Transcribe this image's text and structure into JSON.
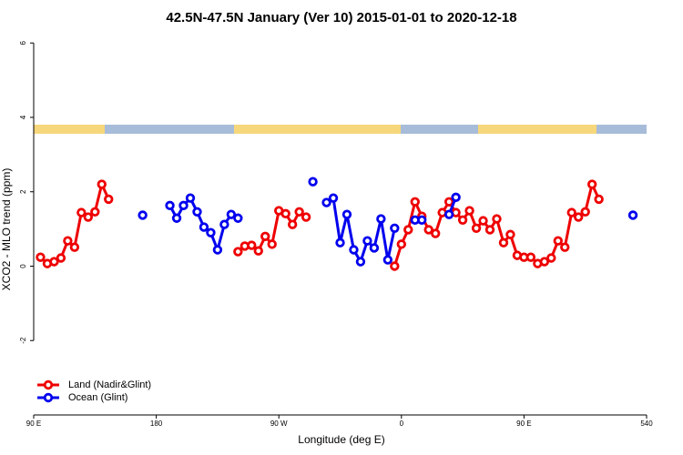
{
  "chart_data": {
    "type": "line",
    "title": "42.5N-47.5N January (Ver 10)   2015-01-01 to 2020-12-18",
    "xlabel": "Longitude (deg E)",
    "ylabel": "XCO2 - MLO trend (ppm)",
    "xlim": [
      90,
      540
    ],
    "xticks": [
      {
        "value": 90,
        "label": "90 E"
      },
      180,
      {
        "value": 270,
        "label": "90 W"
      },
      {
        "value": 360,
        "label": "0"
      },
      {
        "value": 450,
        "label": "90 E"
      },
      540
    ],
    "ylim": [
      -4,
      6.25
    ],
    "yticks": [
      -2,
      0,
      2,
      4,
      6
    ],
    "legend": "bottom-left",
    "series": [
      {
        "name": "Land (Nadir&Glint)",
        "color": "#ee0000",
        "x": [
          95,
          100,
          105,
          110,
          115,
          120,
          125,
          130,
          135,
          140,
          145,
          150,
          240,
          245,
          250,
          255,
          260,
          265,
          270,
          275,
          280,
          285,
          290,
          295,
          355,
          360,
          365,
          370,
          375,
          380,
          385,
          390,
          395,
          400,
          405,
          410,
          415,
          420,
          425,
          430,
          435,
          440,
          445,
          450,
          455,
          460,
          465,
          470,
          475,
          480,
          485,
          490,
          495,
          500,
          505
        ],
        "values": [
          0.24,
          0.07,
          0.12,
          0.22,
          0.68,
          0.51,
          1.44,
          1.32,
          1.46,
          2.2,
          1.8,
          null,
          0.39,
          0.54,
          0.56,
          0.41,
          0.8,
          0.59,
          1.49,
          1.41,
          1.12,
          1.46,
          1.32,
          null,
          0.0,
          0.59,
          0.98,
          1.73,
          1.34,
          0.98,
          0.88,
          1.44,
          1.73,
          1.44,
          1.24,
          1.49,
          1.02,
          1.22,
          0.98,
          1.27,
          0.63,
          0.85,
          0.29,
          0.24,
          0.24,
          0.07,
          0.12,
          0.22,
          0.68,
          0.51,
          1.44,
          1.32,
          1.46,
          2.2,
          1.8
        ]
      },
      {
        "name": "Ocean (Glint)",
        "color": "#0000ee",
        "x": [
          170,
          175,
          190,
          195,
          200,
          205,
          210,
          215,
          220,
          225,
          230,
          235,
          240,
          245,
          295,
          300,
          305,
          310,
          315,
          320,
          325,
          330,
          335,
          340,
          345,
          350,
          355,
          360,
          370,
          375,
          380,
          395,
          400,
          405,
          530
        ],
        "values": [
          1.37,
          null,
          1.63,
          1.29,
          1.63,
          1.83,
          1.46,
          1.05,
          0.9,
          0.44,
          1.12,
          1.39,
          1.29,
          null,
          2.27,
          null,
          1.71,
          1.83,
          0.63,
          1.39,
          0.44,
          0.12,
          0.68,
          0.49,
          1.27,
          0.17,
          1.02,
          null,
          1.24,
          1.24,
          null,
          1.39,
          1.85,
          null,
          1.37
        ]
      }
    ]
  }
}
